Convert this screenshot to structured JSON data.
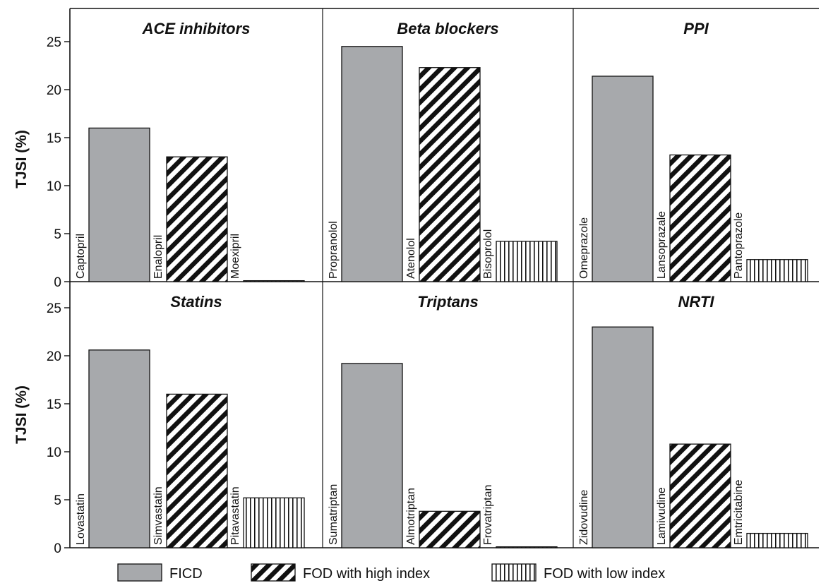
{
  "colors": {
    "FICD": "#a7a9ac",
    "FOD with high index": "#ffffff",
    "FOD with low index": "#ffffff",
    "stroke": "#111111"
  },
  "legend": [
    {
      "name": "FICD",
      "pattern": "solid"
    },
    {
      "name": "FOD with high index",
      "pattern": "diagonal"
    },
    {
      "name": "FOD with low index",
      "pattern": "vertical"
    }
  ],
  "chart_data": {
    "type": "bar",
    "ylabel": "TJSI (%)",
    "ylim": [
      0,
      27
    ],
    "yticks": [
      0,
      5,
      10,
      15,
      20,
      25
    ],
    "series_names": [
      "FICD",
      "FOD with high index",
      "FOD with low index"
    ],
    "grid": false,
    "legend_position": "bottom",
    "panels": [
      {
        "title": "ACE inhibitors",
        "categories": [
          "Captopril",
          "Enalopril",
          "Moexipril"
        ],
        "values": [
          16.0,
          13.0,
          0.1
        ]
      },
      {
        "title": "Beta blockers",
        "categories": [
          "Propranolol",
          "Atenolol",
          "Bisoprolol"
        ],
        "values": [
          24.5,
          22.3,
          4.2
        ]
      },
      {
        "title": "PPI",
        "categories": [
          "Omeprazole",
          "Lansoprazale",
          "Pantoprazole"
        ],
        "values": [
          21.4,
          13.2,
          2.3
        ]
      },
      {
        "title": "Statins",
        "categories": [
          "Lovastatin",
          "Simvastatin",
          "Pitavastatin"
        ],
        "values": [
          20.6,
          16.0,
          5.2
        ]
      },
      {
        "title": "Triptans",
        "categories": [
          "Sumatriptan",
          "Almotriptan",
          "Frovatriptan"
        ],
        "values": [
          19.2,
          3.8,
          0.1
        ]
      },
      {
        "title": "NRTI",
        "categories": [
          "Zidovudine",
          "Lamivudine",
          "Emtricitabine"
        ],
        "values": [
          23.0,
          10.8,
          1.5
        ]
      }
    ]
  }
}
